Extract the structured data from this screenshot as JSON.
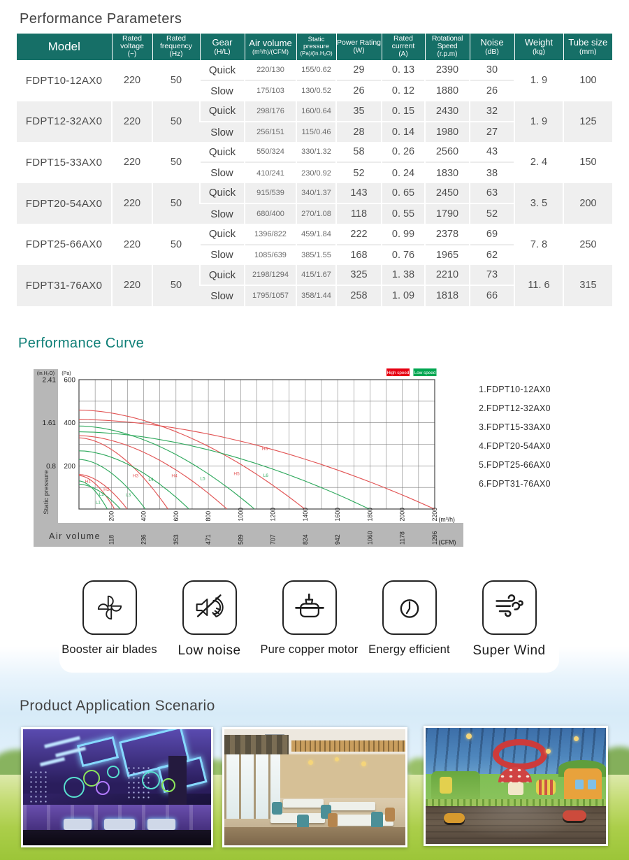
{
  "page": {
    "title1": "Performance Parameters",
    "title2": "Performance Curve",
    "title3": "Product Application Scenario"
  },
  "table": {
    "headers": [
      {
        "label": "Model",
        "unit": ""
      },
      {
        "label": "Rated voltage",
        "unit": "(~)"
      },
      {
        "label": "Rated frequency",
        "unit": "(Hz)"
      },
      {
        "label": "Gear",
        "unit": "(H/L)"
      },
      {
        "label": "Air volume",
        "unit": "(m³/h)/(CFM)"
      },
      {
        "label": "Static pressure",
        "unit": "(Pa)/(in.H₂O)"
      },
      {
        "label": "Power Rating",
        "unit": "(W)"
      },
      {
        "label": "Rated current",
        "unit": "(A)"
      },
      {
        "label": "Rotational Speed",
        "unit": "(r.p.m)"
      },
      {
        "label": "Noise",
        "unit": "(dB)"
      },
      {
        "label": "Weight",
        "unit": "(kg)"
      },
      {
        "label": "Tube size",
        "unit": "(mm)"
      }
    ],
    "gear_quick": "Quick",
    "gear_slow": "Slow",
    "rows": [
      {
        "model": "FDPT10-12AX0",
        "voltage": "220",
        "frequency": "50",
        "weight": "1. 9",
        "tube": "100",
        "quick": {
          "air": "220/130",
          "static": "155/0.62",
          "power": "29",
          "current": "0. 13",
          "speed": "2390",
          "noise": "30"
        },
        "slow": {
          "air": "175/103",
          "static": "130/0.52",
          "power": "26",
          "current": "0. 12",
          "speed": "1880",
          "noise": "26"
        }
      },
      {
        "model": "FDPT12-32AX0",
        "voltage": "220",
        "frequency": "50",
        "weight": "1. 9",
        "tube": "125",
        "quick": {
          "air": "298/176",
          "static": "160/0.64",
          "power": "35",
          "current": "0. 15",
          "speed": "2430",
          "noise": "32"
        },
        "slow": {
          "air": "256/151",
          "static": "115/0.46",
          "power": "28",
          "current": "0. 14",
          "speed": "1980",
          "noise": "27"
        }
      },
      {
        "model": "FDPT15-33AX0",
        "voltage": "220",
        "frequency": "50",
        "weight": "2. 4",
        "tube": "150",
        "quick": {
          "air": "550/324",
          "static": "330/1.32",
          "power": "58",
          "current": "0. 26",
          "speed": "2560",
          "noise": "43"
        },
        "slow": {
          "air": "410/241",
          "static": "230/0.92",
          "power": "52",
          "current": "0. 24",
          "speed": "1830",
          "noise": "38"
        }
      },
      {
        "model": "FDPT20-54AX0",
        "voltage": "220",
        "frequency": "50",
        "weight": "3. 5",
        "tube": "200",
        "quick": {
          "air": "915/539",
          "static": "340/1.37",
          "power": "143",
          "current": "0. 65",
          "speed": "2450",
          "noise": "63"
        },
        "slow": {
          "air": "680/400",
          "static": "270/1.08",
          "power": "118",
          "current": "0. 55",
          "speed": "1790",
          "noise": "52"
        }
      },
      {
        "model": "FDPT25-66AX0",
        "voltage": "220",
        "frequency": "50",
        "weight": "7. 8",
        "tube": "250",
        "quick": {
          "air": "1396/822",
          "static": "459/1.84",
          "power": "222",
          "current": "0. 99",
          "speed": "2378",
          "noise": "69"
        },
        "slow": {
          "air": "1085/639",
          "static": "385/1.55",
          "power": "168",
          "current": "0. 76",
          "speed": "1965",
          "noise": "62"
        }
      },
      {
        "model": "FDPT31-76AX0",
        "voltage": "220",
        "frequency": "50",
        "weight": "11. 6",
        "tube": "315",
        "quick": {
          "air": "2198/1294",
          "static": "415/1.67",
          "power": "325",
          "current": "1. 38",
          "speed": "2210",
          "noise": "73"
        },
        "slow": {
          "air": "1795/1057",
          "static": "358/1.44",
          "power": "258",
          "current": "1. 09",
          "speed": "1818",
          "noise": "66"
        }
      }
    ]
  },
  "chart_data": {
    "type": "line",
    "title": "Performance Curve",
    "xlabel": "Air volume",
    "ylabel": "Static pressure",
    "x_unit_labels": [
      "(m³/h)",
      "(CFM)"
    ],
    "y_unit_labels": [
      "(in.H₂O)",
      "(Pa)"
    ],
    "xlim": [
      0,
      2200
    ],
    "ylim": [
      0,
      600
    ],
    "grid_step": {
      "x": 100,
      "y": 100
    },
    "x_ticks_m3h": [
      200,
      400,
      600,
      800,
      1000,
      1200,
      1400,
      1600,
      1800,
      2000,
      2200
    ],
    "x_ticks_cfm": [
      118,
      236,
      353,
      471,
      589,
      707,
      824,
      942,
      1060,
      1178,
      1296
    ],
    "y_ticks_pa": [
      600,
      400,
      200
    ],
    "y_ticks_inh2o": [
      "2.41",
      "1.61",
      "0.8"
    ],
    "legend": [
      {
        "label": "High speed",
        "color": "#e60012"
      },
      {
        "label": "Low speed",
        "color": "#00a650"
      }
    ],
    "curve_colors": {
      "high": "#e25555",
      "low": "#2fa95d"
    },
    "curve_exponent": 1.8,
    "series": [
      {
        "name": "H1",
        "speed": "high",
        "max_pressure_pa": 155,
        "max_flow_m3h": 220,
        "label_q": 55,
        "label_p": 122
      },
      {
        "name": "H2",
        "speed": "high",
        "max_pressure_pa": 160,
        "max_flow_m3h": 298,
        "label_q": 170,
        "label_p": 85
      },
      {
        "name": "H3",
        "speed": "high",
        "max_pressure_pa": 330,
        "max_flow_m3h": 550,
        "label_q": 350,
        "label_p": 148
      },
      {
        "name": "H4",
        "speed": "high",
        "max_pressure_pa": 340,
        "max_flow_m3h": 915,
        "label_q": 590,
        "label_p": 148
      },
      {
        "name": "H5",
        "speed": "high",
        "max_pressure_pa": 459,
        "max_flow_m3h": 1396,
        "label_q": 975,
        "label_p": 158
      },
      {
        "name": "H6",
        "speed": "high",
        "max_pressure_pa": 415,
        "max_flow_m3h": 2198,
        "label_q": 1150,
        "label_p": 272
      },
      {
        "name": "L1",
        "speed": "low",
        "max_pressure_pa": 130,
        "max_flow_m3h": 175,
        "label_q": 118,
        "label_p": 25
      },
      {
        "name": "L2",
        "speed": "low",
        "max_pressure_pa": 115,
        "max_flow_m3h": 256,
        "label_q": 140,
        "label_p": 62
      },
      {
        "name": "L3",
        "speed": "low",
        "max_pressure_pa": 230,
        "max_flow_m3h": 410,
        "label_q": 305,
        "label_p": 58
      },
      {
        "name": "L4",
        "speed": "low",
        "max_pressure_pa": 270,
        "max_flow_m3h": 680,
        "label_q": 445,
        "label_p": 130
      },
      {
        "name": "L5",
        "speed": "low",
        "max_pressure_pa": 385,
        "max_flow_m3h": 1085,
        "label_q": 765,
        "label_p": 135
      },
      {
        "name": "L6",
        "speed": "low",
        "max_pressure_pa": 358,
        "max_flow_m3h": 1795,
        "label_q": 1155,
        "label_p": 150
      }
    ],
    "model_legend": [
      "1.FDPT10-12AX0",
      "2.FDPT12-32AX0",
      "3.FDPT15-33AX0",
      "4.FDPT20-54AX0",
      "5.FDPT25-66AX0",
      "6.FDPT31-76AX0"
    ]
  },
  "features": [
    {
      "icon": "fan-blades-icon",
      "label": "Booster air blades"
    },
    {
      "icon": "muted-speaker-icon",
      "label": "Low noise"
    },
    {
      "icon": "motor-icon",
      "label": "Pure copper motor"
    },
    {
      "icon": "clock-icon",
      "label": "Energy efficient"
    },
    {
      "icon": "wind-icon",
      "label": "Super Wind"
    }
  ]
}
